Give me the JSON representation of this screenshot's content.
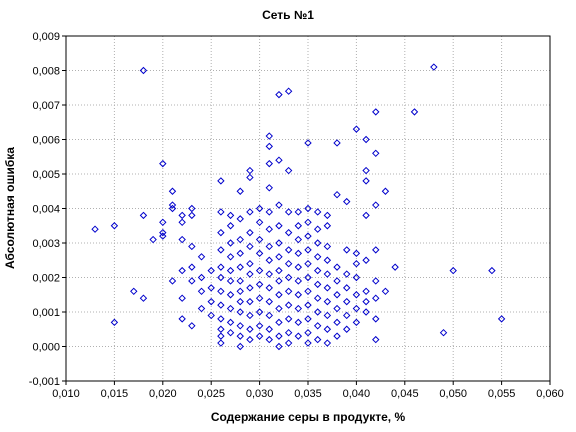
{
  "chart_data": {
    "type": "scatter",
    "title": "Сеть №1",
    "xlabel": "Содержание серы в продукте, %",
    "ylabel": "Абсолютная ошибка",
    "xlim": [
      0.01,
      0.06
    ],
    "ylim": [
      -0.001,
      0.009
    ],
    "xticks": [
      "0,010",
      "0,015",
      "0,020",
      "0,025",
      "0,030",
      "0,035",
      "0,040",
      "0,045",
      "0,050",
      "0,055",
      "0,060"
    ],
    "yticks": [
      "-0,001",
      "0,000",
      "0,001",
      "0,002",
      "0,003",
      "0,004",
      "0,005",
      "0,006",
      "0,007",
      "0,008",
      "0,009"
    ],
    "grid": true,
    "marker": "diamond-open",
    "colors": {
      "marker": "#0000cc",
      "grid": "#b0b0b0",
      "axis": "#000000"
    },
    "points": [
      [
        0.013,
        0.0034
      ],
      [
        0.015,
        0.0035
      ],
      [
        0.015,
        0.0007
      ],
      [
        0.017,
        0.0016
      ],
      [
        0.018,
        0.008
      ],
      [
        0.018,
        0.0038
      ],
      [
        0.018,
        0.0014
      ],
      [
        0.019,
        0.0031
      ],
      [
        0.02,
        0.0053
      ],
      [
        0.02,
        0.0036
      ],
      [
        0.02,
        0.0033
      ],
      [
        0.02,
        0.0032
      ],
      [
        0.021,
        0.0045
      ],
      [
        0.021,
        0.0041
      ],
      [
        0.021,
        0.004
      ],
      [
        0.021,
        0.0019
      ],
      [
        0.022,
        0.0038
      ],
      [
        0.022,
        0.0036
      ],
      [
        0.022,
        0.0031
      ],
      [
        0.022,
        0.0022
      ],
      [
        0.022,
        0.0014
      ],
      [
        0.022,
        0.0008
      ],
      [
        0.023,
        0.004
      ],
      [
        0.023,
        0.0038
      ],
      [
        0.023,
        0.0029
      ],
      [
        0.023,
        0.0023
      ],
      [
        0.023,
        0.0019
      ],
      [
        0.023,
        0.0006
      ],
      [
        0.024,
        0.0026
      ],
      [
        0.024,
        0.002
      ],
      [
        0.024,
        0.0016
      ],
      [
        0.024,
        0.0011
      ],
      [
        0.025,
        0.0022
      ],
      [
        0.025,
        0.0017
      ],
      [
        0.025,
        0.0013
      ],
      [
        0.025,
        0.0009
      ],
      [
        0.026,
        0.0048
      ],
      [
        0.026,
        0.0039
      ],
      [
        0.026,
        0.0033
      ],
      [
        0.026,
        0.0028
      ],
      [
        0.026,
        0.0023
      ],
      [
        0.026,
        0.002
      ],
      [
        0.026,
        0.0016
      ],
      [
        0.026,
        0.0012
      ],
      [
        0.026,
        0.0008
      ],
      [
        0.026,
        0.0005
      ],
      [
        0.026,
        0.0003
      ],
      [
        0.026,
        0.0001
      ],
      [
        0.027,
        0.0038
      ],
      [
        0.027,
        0.0035
      ],
      [
        0.027,
        0.003
      ],
      [
        0.027,
        0.0026
      ],
      [
        0.027,
        0.0022
      ],
      [
        0.027,
        0.0019
      ],
      [
        0.027,
        0.0015
      ],
      [
        0.027,
        0.0011
      ],
      [
        0.027,
        0.0007
      ],
      [
        0.027,
        0.0004
      ],
      [
        0.028,
        0.0045
      ],
      [
        0.028,
        0.0037
      ],
      [
        0.028,
        0.0031
      ],
      [
        0.028,
        0.0027
      ],
      [
        0.028,
        0.0023
      ],
      [
        0.028,
        0.0019
      ],
      [
        0.028,
        0.0016
      ],
      [
        0.028,
        0.0013
      ],
      [
        0.028,
        0.001
      ],
      [
        0.028,
        0.0006
      ],
      [
        0.028,
        0.0003
      ],
      [
        0.028,
        0.0
      ],
      [
        0.029,
        0.0051
      ],
      [
        0.029,
        0.0049
      ],
      [
        0.029,
        0.0039
      ],
      [
        0.029,
        0.0033
      ],
      [
        0.029,
        0.0029
      ],
      [
        0.029,
        0.0024
      ],
      [
        0.029,
        0.0021
      ],
      [
        0.029,
        0.0017
      ],
      [
        0.029,
        0.0013
      ],
      [
        0.029,
        0.0009
      ],
      [
        0.029,
        0.0005
      ],
      [
        0.029,
        0.0002
      ],
      [
        0.03,
        0.004
      ],
      [
        0.03,
        0.0036
      ],
      [
        0.03,
        0.0031
      ],
      [
        0.03,
        0.0027
      ],
      [
        0.03,
        0.0022
      ],
      [
        0.03,
        0.0018
      ],
      [
        0.03,
        0.0014
      ],
      [
        0.03,
        0.001
      ],
      [
        0.03,
        0.0006
      ],
      [
        0.03,
        0.0003
      ],
      [
        0.031,
        0.0061
      ],
      [
        0.031,
        0.0058
      ],
      [
        0.031,
        0.0053
      ],
      [
        0.031,
        0.0046
      ],
      [
        0.031,
        0.0039
      ],
      [
        0.031,
        0.0034
      ],
      [
        0.031,
        0.0029
      ],
      [
        0.031,
        0.0025
      ],
      [
        0.031,
        0.0021
      ],
      [
        0.031,
        0.0017
      ],
      [
        0.031,
        0.0013
      ],
      [
        0.031,
        0.0009
      ],
      [
        0.031,
        0.0005
      ],
      [
        0.031,
        0.0002
      ],
      [
        0.032,
        0.0073
      ],
      [
        0.032,
        0.0054
      ],
      [
        0.032,
        0.0041
      ],
      [
        0.032,
        0.0035
      ],
      [
        0.032,
        0.003
      ],
      [
        0.032,
        0.0026
      ],
      [
        0.032,
        0.0022
      ],
      [
        0.032,
        0.0019
      ],
      [
        0.032,
        0.0015
      ],
      [
        0.032,
        0.0011
      ],
      [
        0.032,
        0.0007
      ],
      [
        0.032,
        0.0003
      ],
      [
        0.032,
        0.0
      ],
      [
        0.033,
        0.0074
      ],
      [
        0.033,
        0.0051
      ],
      [
        0.033,
        0.0039
      ],
      [
        0.033,
        0.0033
      ],
      [
        0.033,
        0.0028
      ],
      [
        0.033,
        0.0024
      ],
      [
        0.033,
        0.002
      ],
      [
        0.033,
        0.0016
      ],
      [
        0.033,
        0.0012
      ],
      [
        0.033,
        0.0008
      ],
      [
        0.033,
        0.0004
      ],
      [
        0.033,
        0.0001
      ],
      [
        0.034,
        0.0039
      ],
      [
        0.034,
        0.0035
      ],
      [
        0.034,
        0.0031
      ],
      [
        0.034,
        0.0027
      ],
      [
        0.034,
        0.0023
      ],
      [
        0.034,
        0.0019
      ],
      [
        0.034,
        0.0015
      ],
      [
        0.034,
        0.0011
      ],
      [
        0.034,
        0.0007
      ],
      [
        0.034,
        0.0003
      ],
      [
        0.035,
        0.0059
      ],
      [
        0.035,
        0.004
      ],
      [
        0.035,
        0.0036
      ],
      [
        0.035,
        0.0032
      ],
      [
        0.035,
        0.0028
      ],
      [
        0.035,
        0.0024
      ],
      [
        0.035,
        0.002
      ],
      [
        0.035,
        0.0016
      ],
      [
        0.035,
        0.0012
      ],
      [
        0.035,
        0.0008
      ],
      [
        0.035,
        0.0004
      ],
      [
        0.035,
        0.0001
      ],
      [
        0.036,
        0.0039
      ],
      [
        0.036,
        0.0034
      ],
      [
        0.036,
        0.003
      ],
      [
        0.036,
        0.0026
      ],
      [
        0.036,
        0.0022
      ],
      [
        0.036,
        0.0018
      ],
      [
        0.036,
        0.0014
      ],
      [
        0.036,
        0.001
      ],
      [
        0.036,
        0.0006
      ],
      [
        0.036,
        0.0002
      ],
      [
        0.037,
        0.0038
      ],
      [
        0.037,
        0.0035
      ],
      [
        0.037,
        0.0029
      ],
      [
        0.037,
        0.0025
      ],
      [
        0.037,
        0.0021
      ],
      [
        0.037,
        0.0017
      ],
      [
        0.037,
        0.0013
      ],
      [
        0.037,
        0.0009
      ],
      [
        0.037,
        0.0005
      ],
      [
        0.037,
        0.0001
      ],
      [
        0.038,
        0.0059
      ],
      [
        0.038,
        0.0044
      ],
      [
        0.038,
        0.0023
      ],
      [
        0.038,
        0.0019
      ],
      [
        0.038,
        0.0015
      ],
      [
        0.038,
        0.0011
      ],
      [
        0.038,
        0.0007
      ],
      [
        0.038,
        0.0003
      ],
      [
        0.039,
        0.0042
      ],
      [
        0.039,
        0.0028
      ],
      [
        0.039,
        0.0021
      ],
      [
        0.039,
        0.0017
      ],
      [
        0.039,
        0.0013
      ],
      [
        0.039,
        0.0009
      ],
      [
        0.039,
        0.0005
      ],
      [
        0.04,
        0.0063
      ],
      [
        0.04,
        0.0027
      ],
      [
        0.04,
        0.0024
      ],
      [
        0.04,
        0.002
      ],
      [
        0.04,
        0.0015
      ],
      [
        0.04,
        0.0011
      ],
      [
        0.04,
        0.0007
      ],
      [
        0.041,
        0.006
      ],
      [
        0.041,
        0.0051
      ],
      [
        0.041,
        0.0048
      ],
      [
        0.041,
        0.0038
      ],
      [
        0.041,
        0.0025
      ],
      [
        0.041,
        0.0016
      ],
      [
        0.041,
        0.0013
      ],
      [
        0.041,
        0.001
      ],
      [
        0.042,
        0.0068
      ],
      [
        0.042,
        0.0056
      ],
      [
        0.042,
        0.0041
      ],
      [
        0.042,
        0.0028
      ],
      [
        0.042,
        0.0019
      ],
      [
        0.042,
        0.0014
      ],
      [
        0.042,
        0.0008
      ],
      [
        0.042,
        0.0002
      ],
      [
        0.043,
        0.0045
      ],
      [
        0.043,
        0.0016
      ],
      [
        0.044,
        0.0023
      ],
      [
        0.046,
        0.0068
      ],
      [
        0.048,
        0.0081
      ],
      [
        0.049,
        0.0004
      ],
      [
        0.05,
        0.0022
      ],
      [
        0.054,
        0.0022
      ],
      [
        0.055,
        0.0008
      ]
    ]
  }
}
